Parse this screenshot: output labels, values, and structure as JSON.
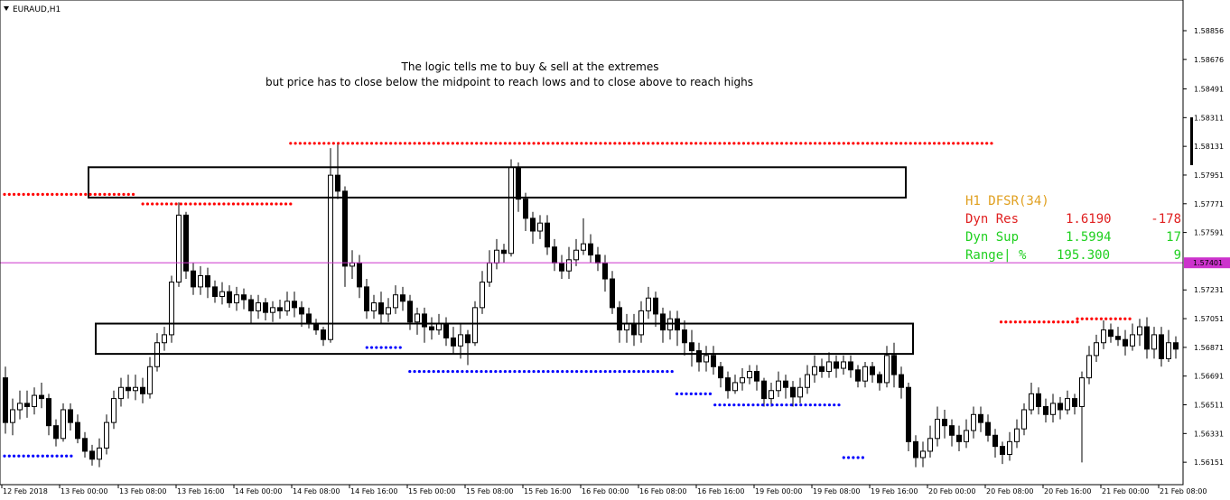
{
  "chart_data": {
    "type": "candlestick",
    "symbol": "EURAUD,H1",
    "annotation": [
      "The logic tells me to buy & sell at the extremes",
      "but price has to close below the midpoint to reach lows and to close above to reach highs"
    ],
    "y_ticks": [
      "1.58856",
      "1.58676",
      "1.58491",
      "1.58311",
      "1.58131",
      "1.57951",
      "1.57771",
      "1.57591",
      "1.57231",
      "1.57051",
      "1.56871",
      "1.56691",
      "1.56511",
      "1.56331",
      "1.56151"
    ],
    "ylim": [
      1.5605,
      1.5902
    ],
    "x_ticks": [
      "12 Feb 2018",
      "13 Feb 00:00",
      "13 Feb 08:00",
      "13 Feb 16:00",
      "14 Feb 00:00",
      "14 Feb 08:00",
      "14 Feb 16:00",
      "15 Feb 00:00",
      "15 Feb 08:00",
      "15 Feb 16:00",
      "16 Feb 00:00",
      "16 Feb 08:00",
      "16 Feb 16:00",
      "19 Feb 00:00",
      "19 Feb 08:00",
      "19 Feb 16:00",
      "20 Feb 00:00",
      "20 Feb 08:00",
      "20 Feb 16:00",
      "21 Feb 00:00",
      "21 Feb 08:00"
    ],
    "current_price": "1.57401",
    "current_price_value": 1.57401,
    "ohlc_seeds": [
      [
        1.5668,
        1.564,
        1.5675,
        1.5633
      ],
      [
        1.564,
        1.5648,
        1.5655,
        1.5632
      ],
      [
        1.5648,
        1.5652,
        1.566,
        1.5642
      ],
      [
        1.5652,
        1.565,
        1.566,
        1.5643
      ],
      [
        1.565,
        1.5657,
        1.5662,
        1.5645
      ],
      [
        1.5657,
        1.5655,
        1.5665,
        1.5649
      ],
      [
        1.5655,
        1.5638,
        1.5658,
        1.5632
      ],
      [
        1.5638,
        1.563,
        1.5642,
        1.5625
      ],
      [
        1.563,
        1.5648,
        1.5652,
        1.5628
      ],
      [
        1.5648,
        1.564,
        1.5652,
        1.5635
      ],
      [
        1.564,
        1.563,
        1.5645,
        1.5627
      ],
      [
        1.563,
        1.5622,
        1.5634,
        1.5618
      ],
      [
        1.5622,
        1.5617,
        1.5626,
        1.5613
      ],
      [
        1.5617,
        1.5624,
        1.563,
        1.5612
      ],
      [
        1.5624,
        1.564,
        1.5645,
        1.562
      ],
      [
        1.564,
        1.5655,
        1.566,
        1.5636
      ],
      [
        1.5655,
        1.5662,
        1.5668,
        1.565
      ],
      [
        1.5662,
        1.566,
        1.567,
        1.5655
      ],
      [
        1.566,
        1.5662,
        1.567,
        1.5654
      ],
      [
        1.5662,
        1.5658,
        1.5668,
        1.5652
      ],
      [
        1.5658,
        1.5675,
        1.5681,
        1.5655
      ],
      [
        1.5675,
        1.569,
        1.5696,
        1.5672
      ],
      [
        1.569,
        1.5695,
        1.57,
        1.5685
      ],
      [
        1.5695,
        1.5728,
        1.5732,
        1.569
      ],
      [
        1.5728,
        1.577,
        1.5778,
        1.5725
      ],
      [
        1.577,
        1.5735,
        1.5772,
        1.573
      ],
      [
        1.5735,
        1.5725,
        1.574,
        1.572
      ],
      [
        1.5725,
        1.5732,
        1.5738,
        1.572
      ],
      [
        1.5732,
        1.5725,
        1.5737,
        1.5718
      ],
      [
        1.5725,
        1.5719,
        1.5729,
        1.5715
      ],
      [
        1.5719,
        1.5722,
        1.5728,
        1.5714
      ],
      [
        1.5722,
        1.5715,
        1.5726,
        1.5712
      ],
      [
        1.5715,
        1.572,
        1.5725,
        1.571
      ],
      [
        1.572,
        1.5717,
        1.5724,
        1.5711
      ],
      [
        1.5717,
        1.571,
        1.572,
        1.5702
      ],
      [
        1.571,
        1.5715,
        1.572,
        1.5705
      ],
      [
        1.5715,
        1.5709,
        1.5718,
        1.5704
      ],
      [
        1.5709,
        1.5712,
        1.5716,
        1.5703
      ],
      [
        1.5712,
        1.571,
        1.5717,
        1.5705
      ],
      [
        1.571,
        1.5716,
        1.5722,
        1.5707
      ],
      [
        1.5716,
        1.5712,
        1.5722,
        1.5706
      ],
      [
        1.5712,
        1.5708,
        1.5716,
        1.57
      ],
      [
        1.5708,
        1.5702,
        1.5712,
        1.5699
      ],
      [
        1.5702,
        1.5698,
        1.5705,
        1.5695
      ],
      [
        1.5698,
        1.5692,
        1.57,
        1.5688
      ],
      [
        1.5692,
        1.5795,
        1.5812,
        1.569
      ],
      [
        1.5795,
        1.5785,
        1.5815,
        1.578
      ],
      [
        1.5785,
        1.5738,
        1.5788,
        1.5725
      ],
      [
        1.5738,
        1.574,
        1.5748,
        1.573
      ],
      [
        1.574,
        1.5725,
        1.5745,
        1.5718
      ],
      [
        1.5725,
        1.571,
        1.573,
        1.5705
      ],
      [
        1.571,
        1.5715,
        1.572,
        1.5705
      ],
      [
        1.5715,
        1.5708,
        1.5722,
        1.5702
      ],
      [
        1.5708,
        1.5712,
        1.5718,
        1.5703
      ],
      [
        1.5712,
        1.572,
        1.5726,
        1.5708
      ],
      [
        1.572,
        1.5716,
        1.5725,
        1.571
      ],
      [
        1.5716,
        1.5703,
        1.572,
        1.5698
      ],
      [
        1.5703,
        1.5708,
        1.5712,
        1.5695
      ],
      [
        1.5708,
        1.57,
        1.5712,
        1.569
      ],
      [
        1.57,
        1.5698,
        1.5706,
        1.5692
      ],
      [
        1.5698,
        1.5702,
        1.5708,
        1.5695
      ],
      [
        1.5702,
        1.5693,
        1.5706,
        1.5688
      ],
      [
        1.5693,
        1.5688,
        1.57,
        1.5683
      ],
      [
        1.5688,
        1.5695,
        1.5702,
        1.568
      ],
      [
        1.5695,
        1.569,
        1.5698,
        1.5676
      ],
      [
        1.569,
        1.5712,
        1.5716,
        1.5688
      ],
      [
        1.5712,
        1.5728,
        1.5735,
        1.5708
      ],
      [
        1.5728,
        1.574,
        1.5748,
        1.5725
      ],
      [
        1.574,
        1.5748,
        1.5755,
        1.5736
      ],
      [
        1.5748,
        1.5746,
        1.5752,
        1.574
      ],
      [
        1.5746,
        1.58,
        1.5805,
        1.5744
      ],
      [
        1.58,
        1.578,
        1.5803,
        1.5772
      ],
      [
        1.578,
        1.5768,
        1.5784,
        1.576
      ],
      [
        1.5768,
        1.576,
        1.5772,
        1.5752
      ],
      [
        1.576,
        1.5765,
        1.577,
        1.5755
      ],
      [
        1.5765,
        1.575,
        1.577,
        1.5745
      ],
      [
        1.575,
        1.574,
        1.5755,
        1.5735
      ],
      [
        1.574,
        1.5735,
        1.5745,
        1.573
      ],
      [
        1.5735,
        1.5742,
        1.575,
        1.573
      ],
      [
        1.5742,
        1.5748,
        1.5755,
        1.5738
      ],
      [
        1.5748,
        1.5752,
        1.5768,
        1.5745
      ],
      [
        1.5752,
        1.5745,
        1.5758,
        1.574
      ],
      [
        1.5745,
        1.574,
        1.575,
        1.5735
      ],
      [
        1.574,
        1.573,
        1.5745,
        1.5722
      ],
      [
        1.573,
        1.5712,
        1.5735,
        1.5708
      ],
      [
        1.5712,
        1.5698,
        1.5716,
        1.569
      ],
      [
        1.5698,
        1.5702,
        1.5708,
        1.569
      ],
      [
        1.5702,
        1.5695,
        1.5708,
        1.5688
      ],
      [
        1.5695,
        1.571,
        1.5716,
        1.569
      ],
      [
        1.571,
        1.5718,
        1.5725,
        1.5705
      ],
      [
        1.5718,
        1.5708,
        1.5722,
        1.57
      ],
      [
        1.5708,
        1.5698,
        1.5712,
        1.569
      ],
      [
        1.5698,
        1.5705,
        1.571,
        1.5692
      ],
      [
        1.5705,
        1.5698,
        1.571,
        1.5688
      ],
      [
        1.5698,
        1.569,
        1.5704,
        1.5682
      ],
      [
        1.569,
        1.5685,
        1.5698,
        1.5675
      ],
      [
        1.5685,
        1.5678,
        1.569,
        1.5672
      ],
      [
        1.5678,
        1.5682,
        1.5688,
        1.5672
      ],
      [
        1.5682,
        1.5675,
        1.5688,
        1.567
      ],
      [
        1.5675,
        1.5668,
        1.5678,
        1.5662
      ],
      [
        1.5668,
        1.566,
        1.5672,
        1.5655
      ],
      [
        1.566,
        1.5665,
        1.567,
        1.5658
      ],
      [
        1.5665,
        1.5668,
        1.5674,
        1.566
      ],
      [
        1.5668,
        1.5672,
        1.5676,
        1.5664
      ],
      [
        1.5672,
        1.5666,
        1.5676,
        1.566
      ],
      [
        1.5666,
        1.5655,
        1.5668,
        1.565
      ],
      [
        1.5655,
        1.566,
        1.5665,
        1.565
      ],
      [
        1.566,
        1.5666,
        1.5672,
        1.5656
      ],
      [
        1.5666,
        1.5662,
        1.567,
        1.5655
      ],
      [
        1.5662,
        1.5656,
        1.5666,
        1.565
      ],
      [
        1.5656,
        1.5662,
        1.5668,
        1.5652
      ],
      [
        1.5662,
        1.567,
        1.5676,
        1.5658
      ],
      [
        1.567,
        1.5675,
        1.5682,
        1.5665
      ],
      [
        1.5675,
        1.5672,
        1.568,
        1.5668
      ],
      [
        1.5672,
        1.5678,
        1.5684,
        1.5668
      ],
      [
        1.5678,
        1.5674,
        1.5682,
        1.5668
      ],
      [
        1.5674,
        1.5678,
        1.5682,
        1.567
      ],
      [
        1.5678,
        1.5673,
        1.5682,
        1.5668
      ],
      [
        1.5673,
        1.5666,
        1.5676,
        1.5662
      ],
      [
        1.5666,
        1.5675,
        1.5678,
        1.5662
      ],
      [
        1.5675,
        1.567,
        1.5678,
        1.5665
      ],
      [
        1.567,
        1.5665,
        1.5672,
        1.566
      ],
      [
        1.5665,
        1.5682,
        1.5688,
        1.5662
      ],
      [
        1.5682,
        1.567,
        1.569,
        1.5662
      ],
      [
        1.567,
        1.5662,
        1.5675,
        1.5655
      ],
      [
        1.5662,
        1.5628,
        1.5665,
        1.5622
      ],
      [
        1.5628,
        1.5618,
        1.5632,
        1.5612
      ],
      [
        1.5618,
        1.5622,
        1.5628,
        1.5612
      ],
      [
        1.5622,
        1.563,
        1.5638,
        1.5618
      ],
      [
        1.563,
        1.5642,
        1.565,
        1.5625
      ],
      [
        1.5642,
        1.5638,
        1.5648,
        1.563
      ],
      [
        1.5638,
        1.5632,
        1.5642,
        1.5625
      ],
      [
        1.5632,
        1.5628,
        1.5638,
        1.5622
      ],
      [
        1.5628,
        1.5635,
        1.5642,
        1.5624
      ],
      [
        1.5635,
        1.5645,
        1.565,
        1.563
      ],
      [
        1.5645,
        1.564,
        1.565,
        1.5634
      ],
      [
        1.564,
        1.5632,
        1.5645,
        1.5628
      ],
      [
        1.5632,
        1.5625,
        1.5636,
        1.5618
      ],
      [
        1.5625,
        1.562,
        1.5628,
        1.5614
      ],
      [
        1.562,
        1.5628,
        1.5634,
        1.5616
      ],
      [
        1.5628,
        1.5636,
        1.5642,
        1.5624
      ],
      [
        1.5636,
        1.5648,
        1.5652,
        1.5632
      ],
      [
        1.5648,
        1.5658,
        1.5665,
        1.5645
      ],
      [
        1.5658,
        1.565,
        1.5662,
        1.5645
      ],
      [
        1.565,
        1.5645,
        1.5655,
        1.564
      ],
      [
        1.5645,
        1.5652,
        1.5658,
        1.564
      ],
      [
        1.5652,
        1.5648,
        1.5656,
        1.5642
      ],
      [
        1.5648,
        1.5655,
        1.566,
        1.5645
      ],
      [
        1.5655,
        1.565,
        1.5658,
        1.5645
      ],
      [
        1.565,
        1.5668,
        1.5672,
        1.5615
      ],
      [
        1.5668,
        1.5682,
        1.5688,
        1.5664
      ],
      [
        1.5682,
        1.569,
        1.5695,
        1.5678
      ],
      [
        1.569,
        1.5698,
        1.5704,
        1.5686
      ],
      [
        1.5698,
        1.5694,
        1.5702,
        1.569
      ],
      [
        1.5694,
        1.5692,
        1.57,
        1.5688
      ],
      [
        1.5692,
        1.5688,
        1.5698,
        1.5682
      ],
      [
        1.5688,
        1.5695,
        1.5702,
        1.5685
      ],
      [
        1.5695,
        1.57,
        1.5705,
        1.5688
      ],
      [
        1.57,
        1.5686,
        1.5706,
        1.568
      ],
      [
        1.5686,
        1.5695,
        1.57,
        1.568
      ],
      [
        1.5695,
        1.568,
        1.57,
        1.5675
      ],
      [
        1.568,
        1.569,
        1.5698,
        1.5678
      ],
      [
        1.569,
        1.5686,
        1.5694,
        1.568
      ]
    ],
    "zones": [
      {
        "top": 1.58,
        "bottom": 1.5781
      },
      {
        "top": 1.5702,
        "bottom": 1.5683
      }
    ],
    "resistance_dots": [
      {
        "from": 0,
        "to": 27,
        "value": 1.5783
      },
      {
        "from": 29,
        "to": 60,
        "value": 1.5777
      },
      {
        "from": 60,
        "to": 207,
        "value": 1.5815
      },
      {
        "from": 209,
        "to": 225,
        "value": 1.5703
      },
      {
        "from": 225,
        "to": 236,
        "value": 1.5705
      }
    ],
    "support_dots": [
      {
        "from": 0,
        "to": 14,
        "value": 1.5619
      },
      {
        "from": 76,
        "to": 83,
        "value": 1.5687
      },
      {
        "from": 85,
        "to": 140,
        "value": 1.5672
      },
      {
        "from": 141,
        "to": 148,
        "value": 1.5658
      },
      {
        "from": 149,
        "to": 175,
        "value": 1.5651
      },
      {
        "from": 176,
        "to": 180,
        "value": 1.5618
      }
    ],
    "dfsr_panel": {
      "title": "H1 DFSR(34)",
      "rows": [
        {
          "label": "Dyn Res",
          "value": "1.6190",
          "pips": "-178",
          "color": "#e02020"
        },
        {
          "label": "Dyn Sup",
          "value": "1.5994",
          "pips": "17",
          "color": "#20d020"
        },
        {
          "label": "Range| %",
          "value": "195.300",
          "pips": "9",
          "color": "#20d020"
        }
      ],
      "title_color": "#e0a020"
    },
    "colors": {
      "bull_body": "#ffffff",
      "bear_body": "#000000",
      "resistance": "#ff0000",
      "support": "#0000ff",
      "price_line": "#cc33cc"
    }
  }
}
